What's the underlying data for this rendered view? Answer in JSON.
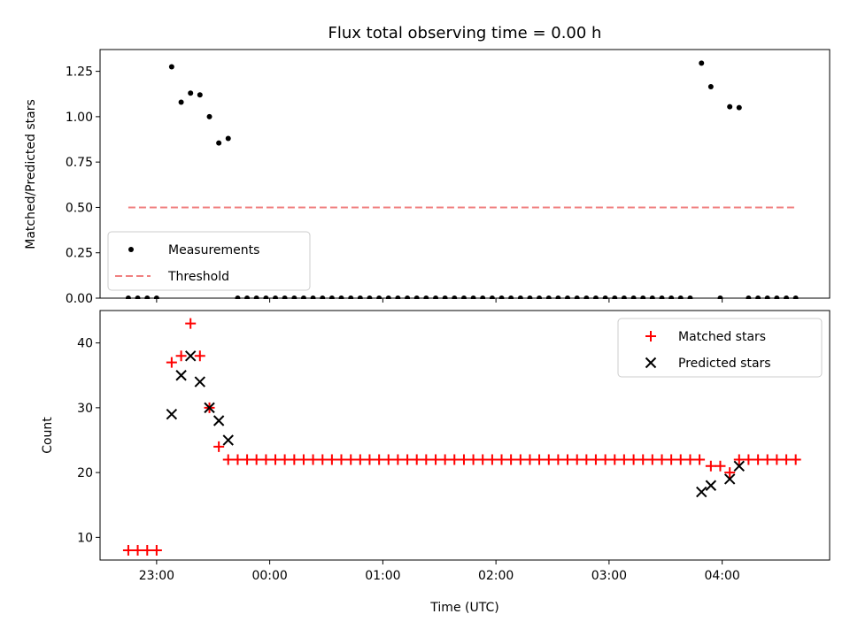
{
  "chart_data": [
    {
      "type": "scatter",
      "title": "Flux total observing time = 0.00 h",
      "xlabel": "",
      "ylabel": "Matched/Predicted stars",
      "xlim": [
        22.5,
        28.95
      ],
      "ylim": [
        0.0,
        1.37
      ],
      "yticks": [
        0.0,
        0.25,
        0.5,
        0.75,
        1.0,
        1.25
      ],
      "ytick_labels": [
        "0.00",
        "0.25",
        "0.50",
        "0.75",
        "1.00",
        "1.25"
      ],
      "xticks": [
        23,
        24,
        25,
        26,
        27,
        28
      ],
      "legend": {
        "location": "lower-left",
        "entries": [
          "Measurements",
          "Threshold"
        ]
      },
      "series": [
        {
          "name": "Measurements",
          "color": "#000000",
          "marker": "dot",
          "points": [
            [
              22.75,
              0
            ],
            [
              22.833,
              0
            ],
            [
              22.917,
              0
            ],
            [
              23.0,
              0
            ],
            [
              23.133,
              1.275
            ],
            [
              23.217,
              1.08
            ],
            [
              23.3,
              1.13
            ],
            [
              23.383,
              1.12
            ],
            [
              23.467,
              1.0
            ],
            [
              23.55,
              0.855
            ],
            [
              23.633,
              0.88
            ],
            [
              23.717,
              0
            ],
            [
              23.8,
              0
            ],
            [
              23.883,
              0
            ],
            [
              23.967,
              0
            ],
            [
              24.05,
              0
            ],
            [
              24.133,
              0
            ],
            [
              24.217,
              0
            ],
            [
              24.3,
              0
            ],
            [
              24.383,
              0
            ],
            [
              24.467,
              0
            ],
            [
              24.55,
              0
            ],
            [
              24.633,
              0
            ],
            [
              24.717,
              0
            ],
            [
              24.8,
              0
            ],
            [
              24.883,
              0
            ],
            [
              24.967,
              0
            ],
            [
              25.05,
              0
            ],
            [
              25.133,
              0
            ],
            [
              25.217,
              0
            ],
            [
              25.3,
              0
            ],
            [
              25.383,
              0
            ],
            [
              25.467,
              0
            ],
            [
              25.55,
              0
            ],
            [
              25.633,
              0
            ],
            [
              25.717,
              0
            ],
            [
              25.8,
              0
            ],
            [
              25.883,
              0
            ],
            [
              25.967,
              0
            ],
            [
              26.05,
              0
            ],
            [
              26.133,
              0
            ],
            [
              26.217,
              0
            ],
            [
              26.3,
              0
            ],
            [
              26.383,
              0
            ],
            [
              26.467,
              0
            ],
            [
              26.55,
              0
            ],
            [
              26.633,
              0
            ],
            [
              26.717,
              0
            ],
            [
              26.8,
              0
            ],
            [
              26.883,
              0
            ],
            [
              26.967,
              0
            ],
            [
              27.05,
              0
            ],
            [
              27.133,
              0
            ],
            [
              27.217,
              0
            ],
            [
              27.3,
              0
            ],
            [
              27.383,
              0
            ],
            [
              27.467,
              0
            ],
            [
              27.55,
              0
            ],
            [
              27.633,
              0
            ],
            [
              27.717,
              0
            ],
            [
              27.817,
              1.295
            ],
            [
              27.9,
              1.165
            ],
            [
              27.983,
              0
            ],
            [
              28.067,
              1.055
            ],
            [
              28.15,
              1.05
            ],
            [
              28.233,
              0
            ],
            [
              28.317,
              0
            ],
            [
              28.4,
              0
            ],
            [
              28.483,
              0
            ],
            [
              28.567,
              0
            ],
            [
              28.65,
              0
            ]
          ]
        },
        {
          "name": "Threshold",
          "color": "#f08080",
          "style": "dashed",
          "points": [
            [
              22.75,
              0.5
            ],
            [
              28.65,
              0.5
            ]
          ]
        }
      ]
    },
    {
      "type": "scatter",
      "title": "",
      "xlabel": "Time (UTC)",
      "ylabel": "Count",
      "xlim": [
        22.5,
        28.95
      ],
      "ylim": [
        6.5,
        45
      ],
      "yticks": [
        10,
        20,
        30,
        40
      ],
      "ytick_labels": [
        "10",
        "20",
        "30",
        "40"
      ],
      "xticks": [
        23,
        24,
        25,
        26,
        27,
        28
      ],
      "xtick_labels": [
        "23:00",
        "00:00",
        "01:00",
        "02:00",
        "03:00",
        "04:00"
      ],
      "legend": {
        "location": "top-right",
        "entries": [
          "Matched stars",
          "Predicted stars"
        ]
      },
      "series": [
        {
          "name": "Matched stars",
          "color": "#ff0000",
          "marker": "plus",
          "points": [
            [
              22.75,
              8
            ],
            [
              22.833,
              8
            ],
            [
              22.917,
              8
            ],
            [
              23.0,
              8
            ],
            [
              23.133,
              37
            ],
            [
              23.217,
              38
            ],
            [
              23.3,
              43
            ],
            [
              23.383,
              38
            ],
            [
              23.467,
              30
            ],
            [
              23.55,
              24
            ],
            [
              23.633,
              22
            ],
            [
              23.717,
              22
            ],
            [
              23.8,
              22
            ],
            [
              23.883,
              22
            ],
            [
              23.967,
              22
            ],
            [
              24.05,
              22
            ],
            [
              24.133,
              22
            ],
            [
              24.217,
              22
            ],
            [
              24.3,
              22
            ],
            [
              24.383,
              22
            ],
            [
              24.467,
              22
            ],
            [
              24.55,
              22
            ],
            [
              24.633,
              22
            ],
            [
              24.717,
              22
            ],
            [
              24.8,
              22
            ],
            [
              24.883,
              22
            ],
            [
              24.967,
              22
            ],
            [
              25.05,
              22
            ],
            [
              25.133,
              22
            ],
            [
              25.217,
              22
            ],
            [
              25.3,
              22
            ],
            [
              25.383,
              22
            ],
            [
              25.467,
              22
            ],
            [
              25.55,
              22
            ],
            [
              25.633,
              22
            ],
            [
              25.717,
              22
            ],
            [
              25.8,
              22
            ],
            [
              25.883,
              22
            ],
            [
              25.967,
              22
            ],
            [
              26.05,
              22
            ],
            [
              26.133,
              22
            ],
            [
              26.217,
              22
            ],
            [
              26.3,
              22
            ],
            [
              26.383,
              22
            ],
            [
              26.467,
              22
            ],
            [
              26.55,
              22
            ],
            [
              26.633,
              22
            ],
            [
              26.717,
              22
            ],
            [
              26.8,
              22
            ],
            [
              26.883,
              22
            ],
            [
              26.967,
              22
            ],
            [
              27.05,
              22
            ],
            [
              27.133,
              22
            ],
            [
              27.217,
              22
            ],
            [
              27.3,
              22
            ],
            [
              27.383,
              22
            ],
            [
              27.467,
              22
            ],
            [
              27.55,
              22
            ],
            [
              27.633,
              22
            ],
            [
              27.717,
              22
            ],
            [
              27.8,
              22
            ],
            [
              27.9,
              21
            ],
            [
              27.983,
              21
            ],
            [
              28.067,
              20
            ],
            [
              28.15,
              22
            ],
            [
              28.233,
              22
            ],
            [
              28.317,
              22
            ],
            [
              28.4,
              22
            ],
            [
              28.483,
              22
            ],
            [
              28.567,
              22
            ],
            [
              28.65,
              22
            ]
          ]
        },
        {
          "name": "Predicted stars",
          "color": "#000000",
          "marker": "x",
          "points": [
            [
              23.133,
              29
            ],
            [
              23.217,
              35
            ],
            [
              23.3,
              38
            ],
            [
              23.383,
              34
            ],
            [
              23.467,
              30
            ],
            [
              23.55,
              28
            ],
            [
              23.633,
              25
            ],
            [
              27.817,
              17
            ],
            [
              27.9,
              18
            ],
            [
              28.067,
              19
            ],
            [
              28.15,
              21
            ]
          ]
        }
      ]
    }
  ]
}
